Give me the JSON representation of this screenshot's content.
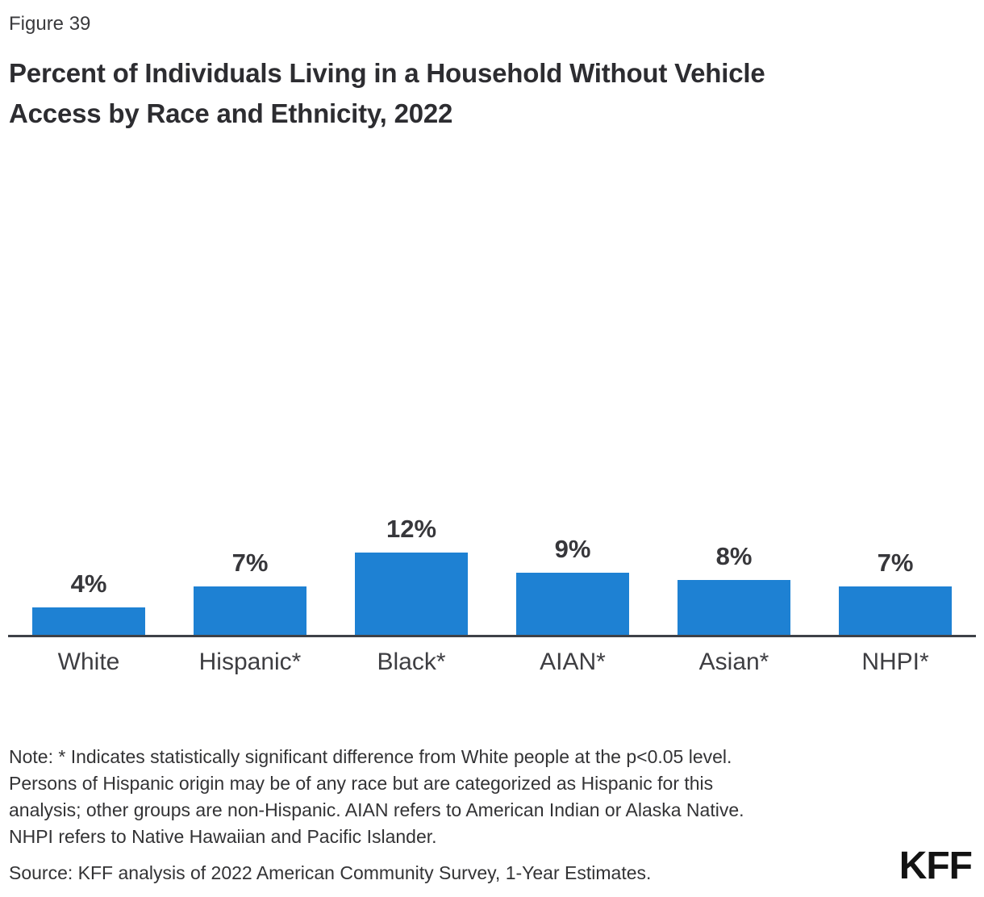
{
  "figure_label": "Figure 39",
  "title_lines": [
    "Percent of Individuals Living in a Household Without Vehicle",
    "Access by Race and Ethnicity, 2022"
  ],
  "chart_data": {
    "type": "bar",
    "title": "Percent of Individuals Living in a Household Without Vehicle Access by Race and Ethnicity, 2022",
    "categories": [
      "White",
      "Hispanic*",
      "Black*",
      "AIAN*",
      "Asian*",
      "NHPI*"
    ],
    "values": [
      4,
      7,
      12,
      9,
      8,
      7
    ],
    "value_labels": [
      "4%",
      "7%",
      "12%",
      "9%",
      "8%",
      "7%"
    ],
    "xlabel": "",
    "ylabel": "",
    "ylim": [
      0,
      14
    ],
    "grid": false,
    "legend": false,
    "bar_color": "#1E81D3",
    "axis_line_color": "#3E4147"
  },
  "note": {
    "lines": [
      "Note: * Indicates statistically significant difference from White people at the p<0.05 level.",
      "Persons of Hispanic origin may be of any race but are categorized as Hispanic for this",
      "analysis; other groups are non-Hispanic. AIAN refers to American Indian or Alaska Native.",
      "NHPI refers to Native Hawaiian and Pacific Islander."
    ]
  },
  "source": "Source: KFF analysis of 2022 American Community Survey, 1-Year Estimates.",
  "logo_text": "KFF"
}
